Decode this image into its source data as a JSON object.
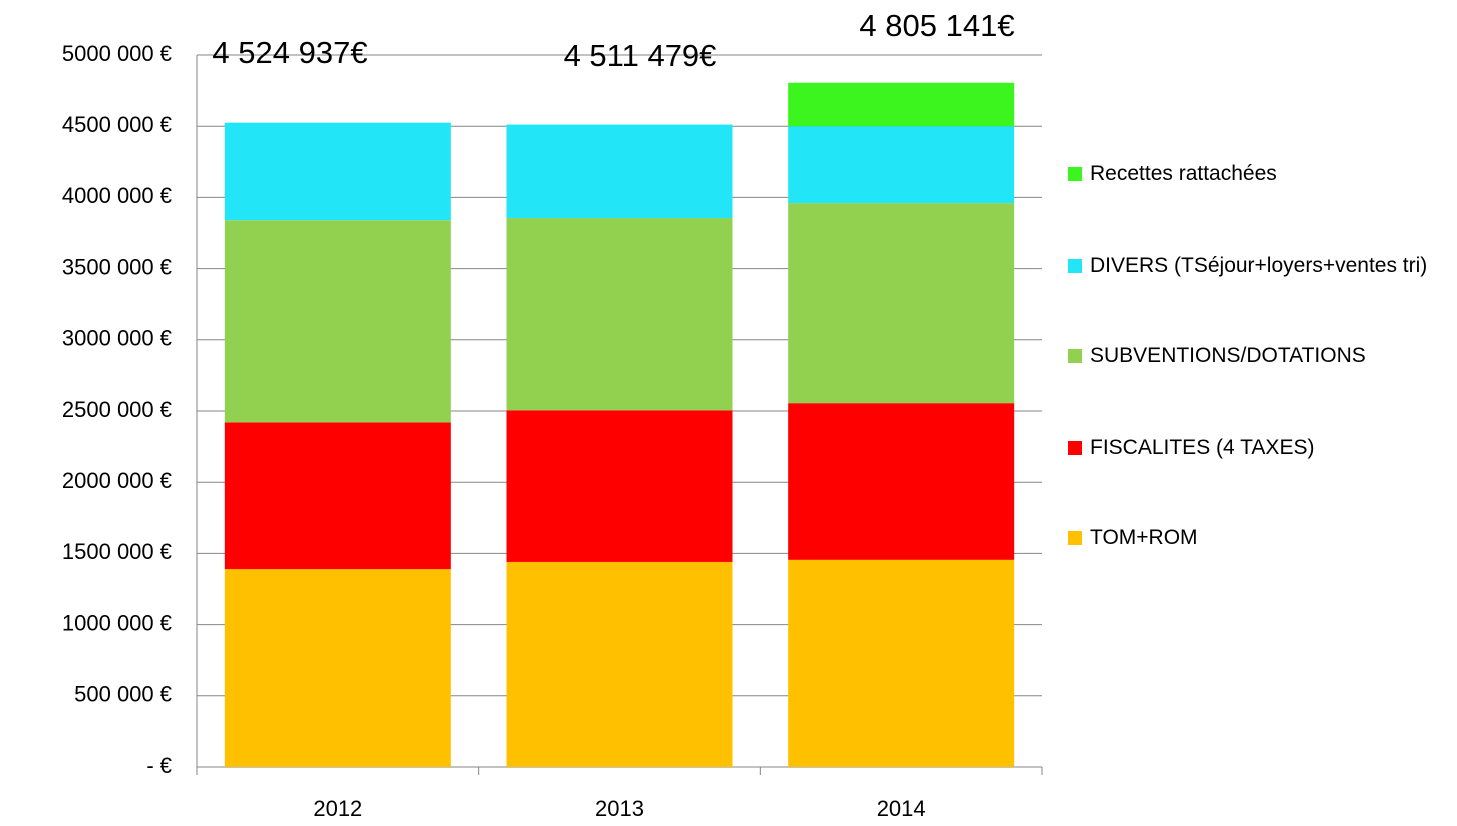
{
  "chart_data": {
    "type": "stacked_bar",
    "categories": [
      "2012",
      "2013",
      "2014"
    ],
    "series": [
      {
        "name": "TOM+ROM",
        "color": "#ffc000",
        "values": [
          1390000,
          1440000,
          1455000
        ]
      },
      {
        "name": "FISCALITES (4 TAXES)",
        "color": "#ff0000",
        "values": [
          1030000,
          1065000,
          1100000
        ]
      },
      {
        "name": "SUBVENTIONS/DOTATIONS",
        "color": "#92d050",
        "values": [
          1420000,
          1350000,
          1405000
        ]
      },
      {
        "name": "DIVERS (TSéjour+loyers+ventes tri)",
        "color": "#22e6f7",
        "values": [
          684937,
          656479,
          540000
        ]
      },
      {
        "name": "Recettes rattachées",
        "color": "#3cf51f",
        "values": [
          0,
          0,
          305141
        ]
      }
    ],
    "annotations": [
      "4 524 937€",
      "4 511 479€",
      "4 805 141€"
    ],
    "ylim": [
      0,
      5000000
    ],
    "yticks": [
      {
        "value": 0,
        "label": "-   €"
      },
      {
        "value": 500000,
        "label": "500 000 €"
      },
      {
        "value": 1000000,
        "label": "1000 000 €"
      },
      {
        "value": 1500000,
        "label": "1500 000 €"
      },
      {
        "value": 2000000,
        "label": "2000 000 €"
      },
      {
        "value": 2500000,
        "label": "2500 000 €"
      },
      {
        "value": 3000000,
        "label": "3000 000 €"
      },
      {
        "value": 3500000,
        "label": "3500 000 €"
      },
      {
        "value": 4000000,
        "label": "4000 000 €"
      },
      {
        "value": 4500000,
        "label": "4500 000 €"
      },
      {
        "value": 5000000,
        "label": "5000 000 €"
      }
    ],
    "grid": true,
    "legend": "right"
  }
}
